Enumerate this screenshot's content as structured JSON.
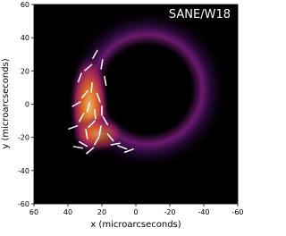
{
  "chart_data": {
    "type": "polarization-image",
    "annotation": "SANE/W18",
    "xlabel": "x (microarcseconds)",
    "ylabel": "y (microarcseconds)",
    "xlim": [
      60,
      -60
    ],
    "ylim": [
      -60,
      60
    ],
    "xticks": [
      60,
      40,
      20,
      0,
      -20,
      -40,
      -60
    ],
    "yticks": [
      -60,
      -40,
      -20,
      0,
      20,
      40,
      60
    ],
    "color": "#ffffff",
    "x": [
      24,
      20,
      28,
      33,
      18,
      26,
      30,
      22,
      35,
      28,
      24,
      32,
      18,
      26,
      21,
      37,
      29,
      15,
      23,
      31,
      27,
      12,
      34,
      20,
      8,
      4
    ],
    "y": [
      30,
      24,
      22,
      16,
      14,
      10,
      6,
      4,
      0,
      -2,
      -6,
      -8,
      -10,
      -12,
      -16,
      -14,
      -18,
      -20,
      -22,
      -24,
      -28,
      -24,
      -26,
      -4,
      -26,
      -28
    ],
    "angle": [
      60,
      80,
      40,
      70,
      100,
      85,
      50,
      110,
      30,
      75,
      95,
      60,
      120,
      45,
      80,
      20,
      100,
      130,
      60,
      150,
      40,
      10,
      170,
      90,
      160,
      20
    ]
  }
}
